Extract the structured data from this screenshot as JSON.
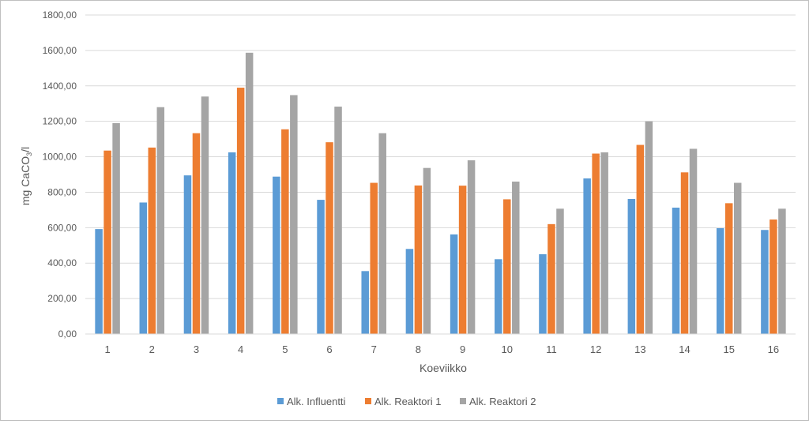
{
  "chart_data": {
    "type": "bar",
    "title": "",
    "xlabel": "Koeviikko",
    "ylabel": "mg CaCO",
    "ylabel_sub": "3",
    "ylabel_suffix": "/l",
    "ylim": [
      0,
      1800
    ],
    "yticks": [
      "0,00",
      "200,00",
      "400,00",
      "600,00",
      "800,00",
      "1000,00",
      "1200,00",
      "1400,00",
      "1600,00",
      "1800,00"
    ],
    "grid": true,
    "legend_position": "bottom",
    "categories": [
      "1",
      "2",
      "3",
      "4",
      "5",
      "6",
      "7",
      "8",
      "9",
      "10",
      "11",
      "12",
      "13",
      "14",
      "15",
      "16"
    ],
    "series": [
      {
        "name": "Alk. Influentti",
        "color": "#5b9bd5",
        "values": [
          592,
          742,
          895,
          1025,
          888,
          757,
          355,
          480,
          562,
          422,
          450,
          878,
          762,
          713,
          597,
          587
        ]
      },
      {
        "name": "Alk. Reaktori 1",
        "color": "#ed7d31",
        "values": [
          1035,
          1052,
          1133,
          1390,
          1155,
          1082,
          853,
          838,
          837,
          760,
          620,
          1018,
          1067,
          912,
          738,
          646
        ]
      },
      {
        "name": "Alk. Reaktori 2",
        "color": "#a5a5a5",
        "values": [
          1190,
          1280,
          1340,
          1587,
          1348,
          1283,
          1133,
          937,
          980,
          860,
          707,
          1025,
          1200,
          1045,
          853,
          707
        ]
      }
    ]
  }
}
